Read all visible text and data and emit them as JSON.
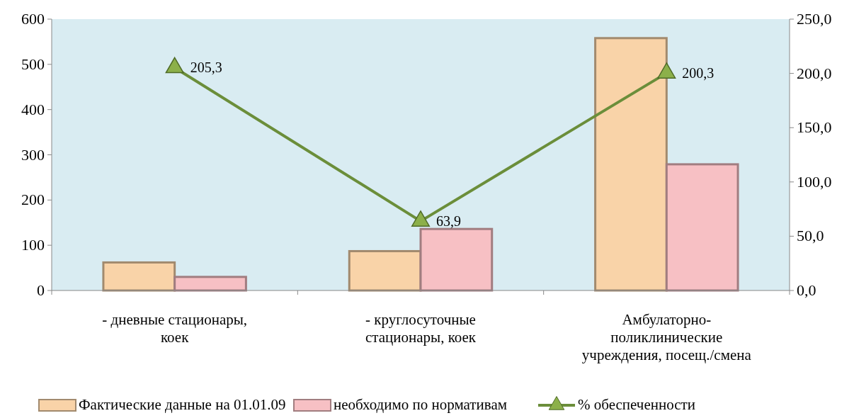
{
  "chart_data": {
    "type": "bar",
    "categories": [
      "- дневные стационары, коек",
      "- круглосуточные стационары, коек",
      "Амбулаторно-поликлинические учреждения, посещ./смена"
    ],
    "series": [
      {
        "name": "Фактические данные на 01.01.09",
        "color": "#f9d3a8",
        "values": [
          62,
          87,
          558
        ]
      },
      {
        "name": "необходимо по нормативам",
        "color": "#f7c0c4",
        "values": [
          30,
          136,
          279
        ]
      },
      {
        "name": "% обеспеченности",
        "type": "line",
        "axis": "y2",
        "color": "#6b8e3a",
        "marker": "triangle",
        "values": [
          205.3,
          63.9,
          200.3
        ],
        "value_labels": [
          "205,3",
          "63,9",
          "200,3"
        ]
      }
    ],
    "ylim": [
      0,
      600
    ],
    "yticks": [
      0,
      100,
      200,
      300,
      400,
      500,
      600
    ],
    "y2lim": [
      0,
      250
    ],
    "y2ticks": [
      {
        "value": 0,
        "label": "0,0"
      },
      {
        "value": 50,
        "label": "50,0"
      },
      {
        "value": 100,
        "label": "100,0"
      },
      {
        "value": 150,
        "label": "150,0"
      },
      {
        "value": 200,
        "label": "200,0"
      },
      {
        "value": 250,
        "label": "250,0"
      }
    ],
    "grid": false,
    "legend": "bottom"
  }
}
